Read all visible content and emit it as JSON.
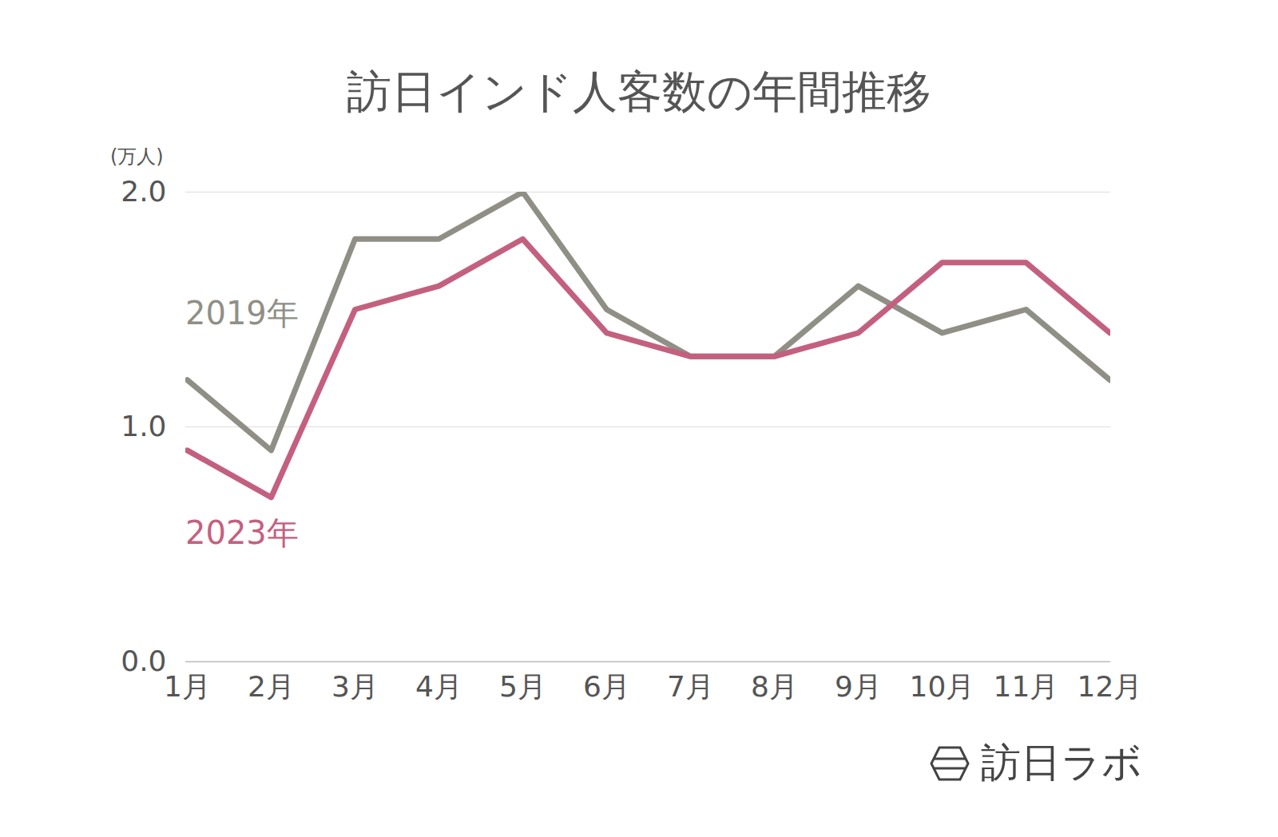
{
  "chart_data": {
    "type": "line",
    "title": "訪日インド人客数の年間推移",
    "y_label": "(万人)",
    "caption": "訪日ラボ",
    "categories": [
      "1月",
      "2月",
      "3月",
      "4月",
      "5月",
      "6月",
      "7月",
      "8月",
      "9月",
      "10月",
      "11月",
      "12月"
    ],
    "series": [
      {
        "name": "2019年",
        "color": "#908f86",
        "values": [
          1.2,
          0.9,
          1.8,
          1.8,
          2.0,
          1.5,
          1.3,
          1.3,
          1.6,
          1.4,
          1.5,
          1.2
        ]
      },
      {
        "name": "2023年",
        "color": "#c4607f",
        "values": [
          0.9,
          0.7,
          1.5,
          1.6,
          1.8,
          1.4,
          1.3,
          1.3,
          1.4,
          1.7,
          1.7,
          1.4
        ]
      }
    ],
    "ylim": [
      0,
      2
    ],
    "yticks": [
      0,
      1,
      2
    ],
    "grid": true
  }
}
